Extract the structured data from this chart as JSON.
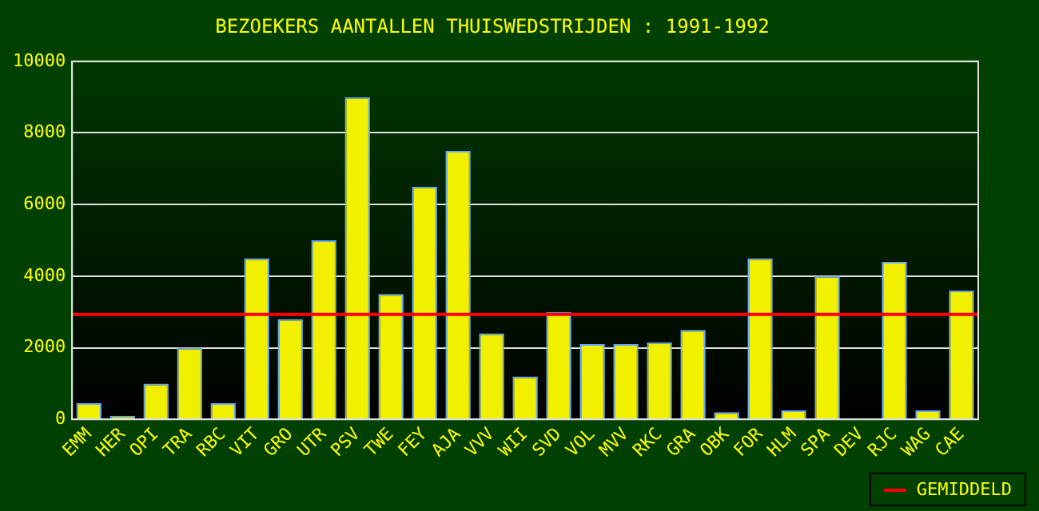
{
  "chart_data": {
    "type": "bar",
    "title": "BEZOEKERS AANTALLEN THUISWEDSTRIJDEN : 1991-1992",
    "categories": [
      "EMM",
      "HER",
      "OPI",
      "TRA",
      "RBC",
      "VIT",
      "GRO",
      "UTR",
      "PSV",
      "TWE",
      "FEY",
      "AJA",
      "VVV",
      "WII",
      "SVD",
      "VOL",
      "MVV",
      "RKC",
      "GRA",
      "OBK",
      "FOR",
      "HLM",
      "SPA",
      "DEV",
      "RJC",
      "WAG",
      "CAE"
    ],
    "values": [
      450,
      100,
      1000,
      2000,
      450,
      4500,
      2800,
      5000,
      9000,
      3500,
      6500,
      7500,
      2400,
      1200,
      3000,
      2100,
      2100,
      2150,
      2500,
      200,
      4500,
      250,
      4000,
      null,
      4400,
      250,
      3600
    ],
    "color": "#f0f000",
    "ylim": [
      0,
      10000
    ],
    "yticks": [
      0,
      2000,
      4000,
      6000,
      8000,
      10000
    ],
    "grid": "y",
    "ref_lines": [
      {
        "axis": "y",
        "value": 2930,
        "label": "GEMIDDELD",
        "color": "#ff0000"
      }
    ],
    "legend": "bottom right"
  }
}
